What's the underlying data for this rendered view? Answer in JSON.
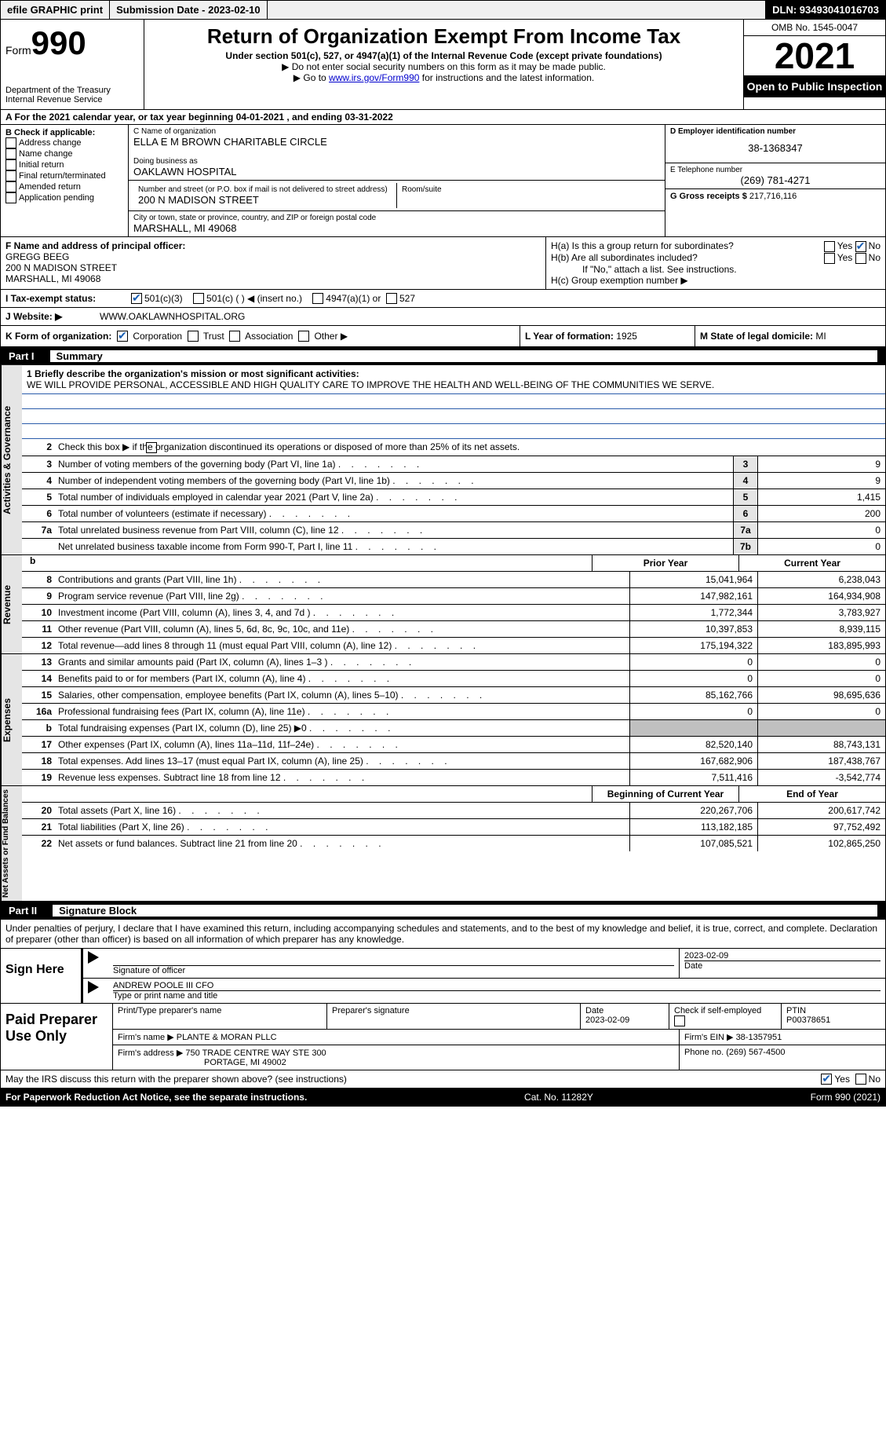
{
  "topbar": {
    "efile": "efile GRAPHIC print",
    "submission": "Submission Date - 2023-02-10",
    "dln": "DLN: 93493041016703"
  },
  "header": {
    "form_word": "Form",
    "form_num": "990",
    "dept": "Department of the Treasury\nInternal Revenue Service",
    "title": "Return of Organization Exempt From Income Tax",
    "subtitle": "Under section 501(c), 527, or 4947(a)(1) of the Internal Revenue Code (except private foundations)",
    "note1": "▶ Do not enter social security numbers on this form as it may be made public.",
    "note2_pre": "▶ Go to ",
    "note2_link": "www.irs.gov/Form990",
    "note2_post": " for instructions and the latest information.",
    "omb": "OMB No. 1545-0047",
    "year": "2021",
    "open": "Open to Public Inspection"
  },
  "row_a": "A  For the 2021 calendar year, or tax year beginning 04-01-2021     , and ending 03-31-2022",
  "col_b": {
    "title": "B Check if applicable:",
    "opts": [
      "Address change",
      "Name change",
      "Initial return",
      "Final return/terminated",
      "Amended return",
      "Application pending"
    ]
  },
  "col_c": {
    "name_label": "C Name of organization",
    "name": "ELLA E M BROWN CHARITABLE CIRCLE",
    "dba_label": "Doing business as",
    "dba": "OAKLAWN HOSPITAL",
    "street_label": "Number and street (or P.O. box if mail is not delivered to street address)",
    "room_label": "Room/suite",
    "street": "200 N MADISON STREET",
    "city_label": "City or town, state or province, country, and ZIP or foreign postal code",
    "city": "MARSHALL, MI  49068"
  },
  "col_d": {
    "ein_label": "D Employer identification number",
    "ein": "38-1368347",
    "phone_label": "E Telephone number",
    "phone": "(269) 781-4271",
    "gross_label": "G Gross receipts $",
    "gross": "217,716,116"
  },
  "f": {
    "label": "F  Name and address of principal officer:",
    "name": "GREGG BEEG",
    "street": "200 N MADISON STREET",
    "city": "MARSHALL, MI  49068"
  },
  "h": {
    "a": "H(a)  Is this a group return for subordinates?",
    "b": "H(b)  Are all subordinates included?",
    "note": "If \"No,\" attach a list. See instructions.",
    "c": "H(c)  Group exemption number ▶",
    "yes": "Yes",
    "no": "No"
  },
  "i": {
    "label": "I    Tax-exempt status:",
    "o1": "501(c)(3)",
    "o2": "501(c) (   ) ◀ (insert no.)",
    "o3": "4947(a)(1) or",
    "o4": "527"
  },
  "j": {
    "label": "J   Website: ▶",
    "val": "WWW.OAKLAWNHOSPITAL.ORG"
  },
  "k": {
    "label": "K Form of organization:",
    "o1": "Corporation",
    "o2": "Trust",
    "o3": "Association",
    "o4": "Other ▶"
  },
  "l": {
    "label": "L Year of formation:",
    "val": "1925"
  },
  "m": {
    "label": "M State of legal domicile:",
    "val": "MI"
  },
  "part1": {
    "num": "Part I",
    "title": "Summary"
  },
  "tabs": {
    "t1": "Activities & Governance",
    "t2": "Revenue",
    "t3": "Expenses",
    "t4": "Net Assets or Fund Balances"
  },
  "mission": {
    "label": "1   Briefly describe the organization's mission or most significant activities:",
    "text": "WE WILL PROVIDE PERSONAL, ACCESSIBLE AND HIGH QUALITY CARE TO IMPROVE THE HEALTH AND WELL-BEING OF THE COMMUNITIES WE SERVE."
  },
  "line2": "Check this box ▶      if the organization discontinued its operations or disposed of more than 25% of its net assets.",
  "lines_gov": [
    {
      "n": "3",
      "d": "Number of voting members of the governing body (Part VI, line 1a)",
      "b": "3",
      "v": "9"
    },
    {
      "n": "4",
      "d": "Number of independent voting members of the governing body (Part VI, line 1b)",
      "b": "4",
      "v": "9"
    },
    {
      "n": "5",
      "d": "Total number of individuals employed in calendar year 2021 (Part V, line 2a)",
      "b": "5",
      "v": "1,415"
    },
    {
      "n": "6",
      "d": "Total number of volunteers (estimate if necessary)",
      "b": "6",
      "v": "200"
    },
    {
      "n": "7a",
      "d": "Total unrelated business revenue from Part VIII, column (C), line 12",
      "b": "7a",
      "v": "0"
    },
    {
      "n": "",
      "d": "Net unrelated business taxable income from Form 990-T, Part I, line 11",
      "b": "7b",
      "v": "0"
    }
  ],
  "hdr": {
    "py": "Prior Year",
    "cy": "Current Year"
  },
  "lines_rev": [
    {
      "n": "8",
      "d": "Contributions and grants (Part VIII, line 1h)",
      "p": "15,041,964",
      "c": "6,238,043"
    },
    {
      "n": "9",
      "d": "Program service revenue (Part VIII, line 2g)",
      "p": "147,982,161",
      "c": "164,934,908"
    },
    {
      "n": "10",
      "d": "Investment income (Part VIII, column (A), lines 3, 4, and 7d )",
      "p": "1,772,344",
      "c": "3,783,927"
    },
    {
      "n": "11",
      "d": "Other revenue (Part VIII, column (A), lines 5, 6d, 8c, 9c, 10c, and 11e)",
      "p": "10,397,853",
      "c": "8,939,115"
    },
    {
      "n": "12",
      "d": "Total revenue—add lines 8 through 11 (must equal Part VIII, column (A), line 12)",
      "p": "175,194,322",
      "c": "183,895,993"
    }
  ],
  "lines_exp": [
    {
      "n": "13",
      "d": "Grants and similar amounts paid (Part IX, column (A), lines 1–3 )",
      "p": "0",
      "c": "0"
    },
    {
      "n": "14",
      "d": "Benefits paid to or for members (Part IX, column (A), line 4)",
      "p": "0",
      "c": "0"
    },
    {
      "n": "15",
      "d": "Salaries, other compensation, employee benefits (Part IX, column (A), lines 5–10)",
      "p": "85,162,766",
      "c": "98,695,636"
    },
    {
      "n": "16a",
      "d": "Professional fundraising fees (Part IX, column (A), line 11e)",
      "p": "0",
      "c": "0"
    },
    {
      "n": "b",
      "d": "Total fundraising expenses (Part IX, column (D), line 25) ▶0",
      "p": "",
      "c": "",
      "shaded": true
    },
    {
      "n": "17",
      "d": "Other expenses (Part IX, column (A), lines 11a–11d, 11f–24e)",
      "p": "82,520,140",
      "c": "88,743,131"
    },
    {
      "n": "18",
      "d": "Total expenses. Add lines 13–17 (must equal Part IX, column (A), line 25)",
      "p": "167,682,906",
      "c": "187,438,767"
    },
    {
      "n": "19",
      "d": "Revenue less expenses. Subtract line 18 from line 12",
      "p": "7,511,416",
      "c": "-3,542,774"
    }
  ],
  "hdr2": {
    "py": "Beginning of Current Year",
    "cy": "End of Year"
  },
  "lines_net": [
    {
      "n": "20",
      "d": "Total assets (Part X, line 16)",
      "p": "220,267,706",
      "c": "200,617,742"
    },
    {
      "n": "21",
      "d": "Total liabilities (Part X, line 26)",
      "p": "113,182,185",
      "c": "97,752,492"
    },
    {
      "n": "22",
      "d": "Net assets or fund balances. Subtract line 21 from line 20",
      "p": "107,085,521",
      "c": "102,865,250"
    }
  ],
  "part2": {
    "num": "Part II",
    "title": "Signature Block"
  },
  "sig": {
    "decl": "Under penalties of perjury, I declare that I have examined this return, including accompanying schedules and statements, and to the best of my knowledge and belief, it is true, correct, and complete. Declaration of preparer (other than officer) is based on all information of which preparer has any knowledge.",
    "here": "Sign Here",
    "sig_label": "Signature of officer",
    "date_label": "Date",
    "date": "2023-02-09",
    "name": "ANDREW POOLE III CFO",
    "name_label": "Type or print name and title"
  },
  "prep": {
    "title": "Paid Preparer Use Only",
    "h1": "Print/Type preparer's name",
    "h2": "Preparer's signature",
    "h3": "Date",
    "date": "2023-02-09",
    "h4": "Check       if self-employed",
    "h5": "PTIN",
    "ptin": "P00378651",
    "firm_label": "Firm's name     ▶",
    "firm": "PLANTE & MORAN PLLC",
    "ein_label": "Firm's EIN ▶",
    "ein": "38-1357951",
    "addr_label": "Firm's address ▶",
    "addr1": "750 TRADE CENTRE WAY STE 300",
    "addr2": "PORTAGE, MI  49002",
    "phone_label": "Phone no.",
    "phone": "(269) 567-4500"
  },
  "discuss": {
    "q": "May the IRS discuss this return with the preparer shown above? (see instructions)",
    "yes": "Yes",
    "no": "No"
  },
  "footer": {
    "l": "For Paperwork Reduction Act Notice, see the separate instructions.",
    "m": "Cat. No. 11282Y",
    "r": "Form 990 (2021)"
  }
}
